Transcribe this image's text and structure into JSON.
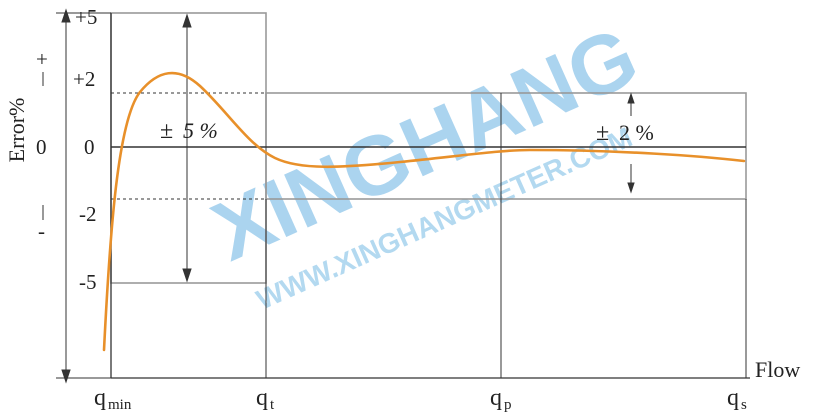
{
  "y_axis": {
    "title": "Error%",
    "sign_plus": "+",
    "sign_zero": "0",
    "sign_minus": "-",
    "ticks": {
      "p5": "+5",
      "p2": "+2",
      "z": "0",
      "m2": "-2",
      "m5": "-5"
    }
  },
  "x_axis": {
    "title": "Flow",
    "ticks": [
      {
        "base": "q",
        "sub": "min"
      },
      {
        "base": "q",
        "sub": "t"
      },
      {
        "base": "q",
        "sub": "p"
      },
      {
        "base": "q",
        "sub": "s"
      }
    ]
  },
  "zones": {
    "low": {
      "label_pm": "±",
      "label_value": "5 %"
    },
    "high": {
      "label_pm": "±",
      "label_value": "2 %"
    }
  },
  "watermark": {
    "brand": "XINGHANG",
    "url": "WWW.XINGHANGMETER.COM"
  },
  "colors": {
    "curve": "#E8902A",
    "watermark": "#8FC6EA",
    "lines": "#333333",
    "boxes": "#999999"
  }
}
